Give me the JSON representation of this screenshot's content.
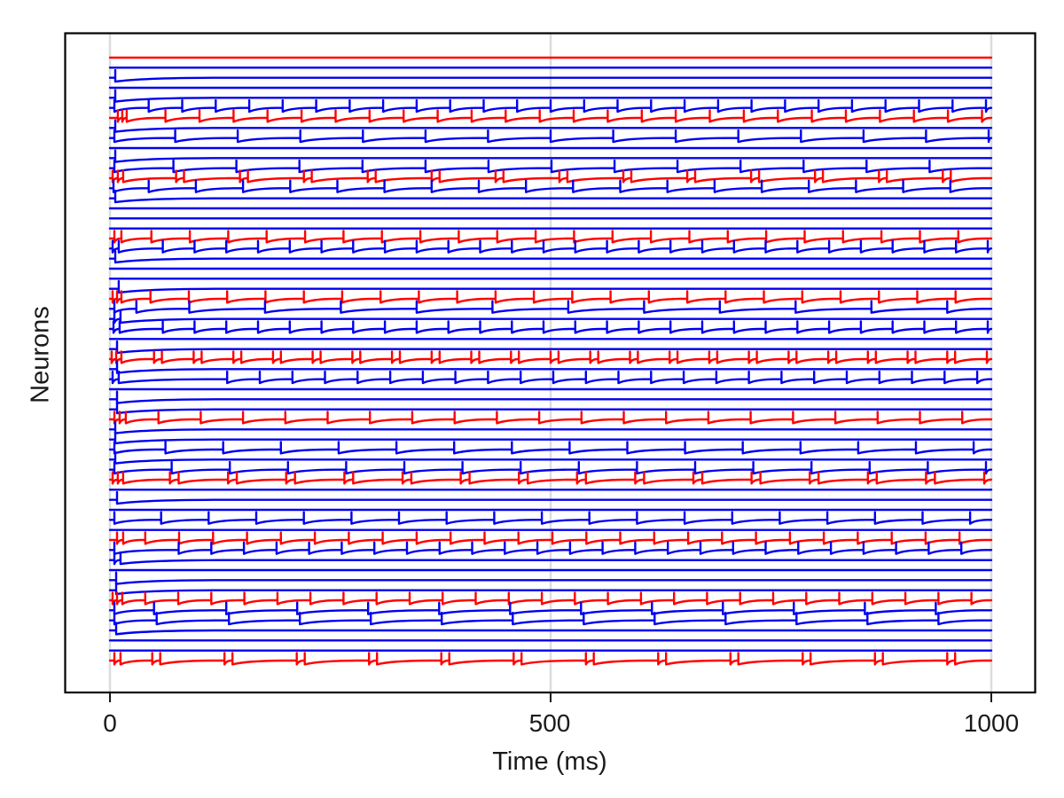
{
  "chart_data": {
    "type": "line",
    "subtype": "spike-train-raster",
    "title": "",
    "xlabel": "Time (ms)",
    "ylabel": "Neurons",
    "xlim": [
      0,
      1000
    ],
    "x_ticks": [
      0,
      500,
      1000
    ],
    "x_tick_labels": [
      "0",
      "500",
      "1000"
    ],
    "y_tick_labels": [],
    "grid": "vertical-light",
    "legend": "none",
    "n_neurons": 61,
    "colors": {
      "excitatory_trace": "#0000ee",
      "inhibitory_trace": "#ff0000",
      "grid_line": "#dcdcdc",
      "axis_border": "#000000",
      "tick": "#1a1a1a",
      "background": "#ffffff"
    },
    "neurons": [
      {
        "color": "red",
        "initial_spikes": [],
        "first": 0,
        "period": 0,
        "doublet_gap": 0
      },
      {
        "color": "blue",
        "initial_spikes": [],
        "first": 0,
        "period": 0,
        "doublet_gap": 0
      },
      {
        "color": "blue",
        "initial_spikes": [
          6
        ],
        "first": 0,
        "period": 0,
        "doublet_gap": 0
      },
      {
        "color": "blue",
        "initial_spikes": [],
        "first": 0,
        "period": 0,
        "doublet_gap": 0
      },
      {
        "color": "blue",
        "initial_spikes": [
          6
        ],
        "first": 0,
        "period": 0,
        "doublet_gap": 0
      },
      {
        "color": "blue",
        "initial_spikes": [
          5
        ],
        "first": 44,
        "period": 38,
        "doublet_gap": 0
      },
      {
        "color": "red",
        "initial_spikes": [
          9,
          14,
          19
        ],
        "first": 63,
        "period": 38.6,
        "doublet_gap": 0
      },
      {
        "color": "blue",
        "initial_spikes": [
          6
        ],
        "first": 0,
        "period": 0,
        "doublet_gap": 0
      },
      {
        "color": "blue",
        "initial_spikes": [
          5
        ],
        "first": 74,
        "period": 71,
        "doublet_gap": 0
      },
      {
        "color": "blue",
        "initial_spikes": [],
        "first": 0,
        "period": 0,
        "doublet_gap": 0
      },
      {
        "color": "blue",
        "initial_spikes": [
          6
        ],
        "first": 0,
        "period": 0,
        "doublet_gap": 0
      },
      {
        "color": "blue",
        "initial_spikes": [
          5
        ],
        "first": 72,
        "period": 71.5,
        "doublet_gap": 0
      },
      {
        "color": "red",
        "initial_spikes": [
          3,
          9,
          15
        ],
        "first": 75,
        "period": 72.5,
        "doublet_gap": 9
      },
      {
        "color": "blue",
        "initial_spikes": [
          4
        ],
        "first": 44,
        "period": 53.5,
        "doublet_gap": 0
      },
      {
        "color": "blue",
        "initial_spikes": [
          6
        ],
        "first": 0,
        "period": 0,
        "doublet_gap": 0
      },
      {
        "color": "blue",
        "initial_spikes": [],
        "first": 0,
        "period": 0,
        "doublet_gap": 0
      },
      {
        "color": "blue",
        "initial_spikes": [],
        "first": 0,
        "period": 0,
        "doublet_gap": 0
      },
      {
        "color": "blue",
        "initial_spikes": [],
        "first": 0,
        "period": 0,
        "doublet_gap": 0
      },
      {
        "color": "red",
        "initial_spikes": [
          5,
          13
        ],
        "first": 47,
        "period": 43.6,
        "doublet_gap": 0
      },
      {
        "color": "blue",
        "initial_spikes": [
          3,
          10
        ],
        "first": 60,
        "period": 36,
        "doublet_gap": 0
      },
      {
        "color": "blue",
        "initial_spikes": [
          6
        ],
        "first": 0,
        "period": 0,
        "doublet_gap": 0
      },
      {
        "color": "blue",
        "initial_spikes": [],
        "first": 0,
        "period": 0,
        "doublet_gap": 0
      },
      {
        "color": "blue",
        "initial_spikes": [],
        "first": 0,
        "period": 0,
        "doublet_gap": 0
      },
      {
        "color": "blue",
        "initial_spikes": [
          10
        ],
        "first": 0,
        "period": 0,
        "doublet_gap": 0
      },
      {
        "color": "red",
        "initial_spikes": [
          3,
          8,
          13
        ],
        "first": 46,
        "period": 43.5,
        "doublet_gap": 0
      },
      {
        "color": "blue",
        "initial_spikes": [
          5,
          30
        ],
        "first": 90,
        "period": 86,
        "doublet_gap": 0
      },
      {
        "color": "blue",
        "initial_spikes": [
          5,
          12
        ],
        "first": 0,
        "period": 0,
        "doublet_gap": 0
      },
      {
        "color": "blue",
        "initial_spikes": [
          4,
          11
        ],
        "first": 60,
        "period": 36,
        "doublet_gap": 0
      },
      {
        "color": "blue",
        "initial_spikes": [],
        "first": 0,
        "period": 0,
        "doublet_gap": 0
      },
      {
        "color": "blue",
        "initial_spikes": [
          8
        ],
        "first": 0,
        "period": 0,
        "doublet_gap": 0
      },
      {
        "color": "red",
        "initial_spikes": [
          2,
          7,
          13
        ],
        "first": 50,
        "period": 45,
        "doublet_gap": 9
      },
      {
        "color": "blue",
        "initial_spikes": [
          8
        ],
        "first": 0,
        "period": 0,
        "doublet_gap": 0
      },
      {
        "color": "blue",
        "initial_spikes": [
          3,
          10
        ],
        "first": 133,
        "period": 37,
        "doublet_gap": 0
      },
      {
        "color": "blue",
        "initial_spikes": [],
        "first": 0,
        "period": 0,
        "doublet_gap": 0
      },
      {
        "color": "blue",
        "initial_spikes": [
          8
        ],
        "first": 0,
        "period": 0,
        "doublet_gap": 0
      },
      {
        "color": "blue",
        "initial_spikes": [
          8
        ],
        "first": 0,
        "period": 0,
        "doublet_gap": 0
      },
      {
        "color": "red",
        "initial_spikes": [
          5,
          11,
          18
        ],
        "first": 55,
        "period": 48,
        "doublet_gap": 0
      },
      {
        "color": "blue",
        "initial_spikes": [
          6
        ],
        "first": 0,
        "period": 0,
        "doublet_gap": 0
      },
      {
        "color": "blue",
        "initial_spikes": [
          6
        ],
        "first": 0,
        "period": 0,
        "doublet_gap": 0
      },
      {
        "color": "blue",
        "initial_spikes": [
          5
        ],
        "first": 63,
        "period": 65.5,
        "doublet_gap": 0
      },
      {
        "color": "blue",
        "initial_spikes": [
          6
        ],
        "first": 0,
        "period": 0,
        "doublet_gap": 0
      },
      {
        "color": "blue",
        "initial_spikes": [
          5
        ],
        "first": 70,
        "period": 66,
        "doublet_gap": 0
      },
      {
        "color": "red",
        "initial_spikes": [
          3,
          9,
          15
        ],
        "first": 68,
        "period": 66,
        "doublet_gap": 10
      },
      {
        "color": "blue",
        "initial_spikes": [],
        "first": 0,
        "period": 0,
        "doublet_gap": 0
      },
      {
        "color": "blue",
        "initial_spikes": [
          8
        ],
        "first": 0,
        "period": 0,
        "doublet_gap": 0
      },
      {
        "color": "blue",
        "initial_spikes": [],
        "first": 0,
        "period": 0,
        "doublet_gap": 0
      },
      {
        "color": "blue",
        "initial_spikes": [
          5
        ],
        "first": 58,
        "period": 54,
        "doublet_gap": 0
      },
      {
        "color": "blue",
        "initial_spikes": [],
        "first": 0,
        "period": 0,
        "doublet_gap": 0
      },
      {
        "color": "red",
        "initial_spikes": [
          8,
          15
        ],
        "first": 40,
        "period": 38.5,
        "doublet_gap": 0
      },
      {
        "color": "blue",
        "initial_spikes": [
          5
        ],
        "first": 78,
        "period": 37,
        "doublet_gap": 0
      },
      {
        "color": "blue",
        "initial_spikes": [
          5,
          12
        ],
        "first": 0,
        "period": 0,
        "doublet_gap": 0
      },
      {
        "color": "blue",
        "initial_spikes": [],
        "first": 0,
        "period": 0,
        "doublet_gap": 0
      },
      {
        "color": "blue",
        "initial_spikes": [
          7
        ],
        "first": 0,
        "period": 0,
        "doublet_gap": 0
      },
      {
        "color": "blue",
        "initial_spikes": [
          7
        ],
        "first": 0,
        "period": 0,
        "doublet_gap": 0
      },
      {
        "color": "red",
        "initial_spikes": [
          3,
          8,
          14
        ],
        "first": 40,
        "period": 37.5,
        "doublet_gap": 0
      },
      {
        "color": "blue",
        "initial_spikes": [
          5,
          50
        ],
        "first": 132,
        "period": 80.5,
        "doublet_gap": 0
      },
      {
        "color": "blue",
        "initial_spikes": [
          5,
          53
        ],
        "first": 135,
        "period": 80.5,
        "doublet_gap": 0
      },
      {
        "color": "blue",
        "initial_spikes": [
          7
        ],
        "first": 0,
        "period": 0,
        "doublet_gap": 0
      },
      {
        "color": "blue",
        "initial_spikes": [],
        "first": 0,
        "period": 0,
        "doublet_gap": 0
      },
      {
        "color": "blue",
        "initial_spikes": [],
        "first": 0,
        "period": 0,
        "doublet_gap": 0
      },
      {
        "color": "red",
        "initial_spikes": [
          5,
          12
        ],
        "first": 48,
        "period": 82,
        "doublet_gap": 9
      }
    ]
  }
}
